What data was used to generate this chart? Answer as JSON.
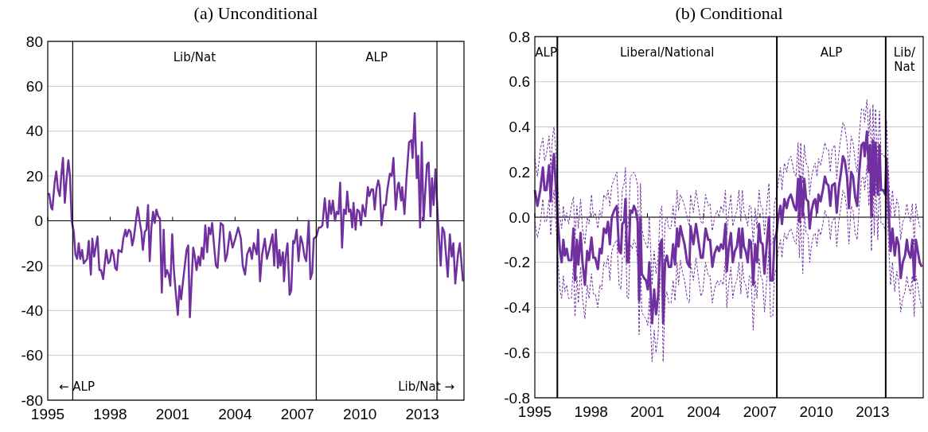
{
  "chart_data": [
    {
      "type": "line",
      "title": "(a) Unconditional",
      "xlim": [
        1995,
        2015
      ],
      "xticks": [
        1995,
        1998,
        2001,
        2004,
        2007,
        2010,
        2013
      ],
      "ylim": [
        -80,
        80
      ],
      "yticks": [
        -80,
        -60,
        -40,
        -20,
        0,
        20,
        40,
        60,
        80
      ],
      "grid": "y",
      "series": [
        {
          "color": "#7030a0",
          "x": [
            1995.0,
            1995.07,
            1995.16,
            1995.22,
            1995.33,
            1995.41,
            1995.49,
            1995.58,
            1995.65,
            1995.73,
            1995.82,
            1995.9,
            1995.99,
            1996.07,
            1996.15,
            1996.25,
            1996.33,
            1996.41,
            1996.49,
            1996.56,
            1996.65,
            1996.73,
            1996.89,
            1996.97,
            1997.07,
            1997.14,
            1997.23,
            1997.39,
            1997.48,
            1997.56,
            1997.66,
            1997.81,
            1997.91,
            1997.99,
            1998.08,
            1998.16,
            1998.24,
            1998.32,
            1998.4,
            1998.55,
            1998.63,
            1998.73,
            1998.79,
            1998.9,
            1998.98,
            1999.06,
            1999.13,
            1999.32,
            1999.43,
            1999.5,
            1999.57,
            1999.66,
            1999.74,
            1999.82,
            1999.9,
            1999.98,
            2000.06,
            2000.14,
            2000.22,
            2000.31,
            2000.39,
            2000.48,
            2000.57,
            2000.65,
            2000.73,
            2000.81,
            2000.89,
            2000.98,
            2001.06,
            2001.16,
            2001.25,
            2001.33,
            2001.41,
            2001.5,
            2001.67,
            2001.75,
            2001.83,
            2001.91,
            2001.99,
            2002.07,
            2002.15,
            2002.24,
            2002.32,
            2002.4,
            2002.48,
            2002.57,
            2002.66,
            2002.74,
            2002.82,
            2002.9,
            2002.98,
            2003.08,
            2003.16,
            2003.31,
            2003.42,
            2003.53,
            2003.62,
            2003.75,
            2003.88,
            2004.01,
            2004.15,
            2004.28,
            2004.37,
            2004.48,
            2004.58,
            2004.71,
            2004.81,
            2004.9,
            2005.04,
            2005.11,
            2005.2,
            2005.3,
            2005.43,
            2005.53,
            2005.64,
            2005.8,
            2005.88,
            2005.96,
            2006.06,
            2006.13,
            2006.19,
            2006.3,
            2006.35,
            2006.43,
            2006.52,
            2006.62,
            2006.7,
            2006.79,
            2006.85,
            2006.96,
            2007.05,
            2007.15,
            2007.24,
            2007.34,
            2007.42,
            2007.54,
            2007.62,
            2007.71,
            2007.78,
            2007.91,
            2008.02,
            2008.11,
            2008.2,
            2008.31,
            2008.44,
            2008.53,
            2008.61,
            2008.7,
            2008.8,
            2008.88,
            2008.97,
            2009.05,
            2009.14,
            2009.23,
            2009.32,
            2009.39,
            2009.47,
            2009.55,
            2009.63,
            2009.69,
            2009.79,
            2009.87,
            2009.97,
            2010.05,
            2010.13,
            2010.26,
            2010.38,
            2010.45,
            2010.55,
            2010.63,
            2010.71,
            2010.79,
            2010.88,
            2010.95,
            2011.04,
            2011.15,
            2011.24,
            2011.32,
            2011.44,
            2011.53,
            2011.61,
            2011.72,
            2011.82,
            2011.87,
            2011.98,
            2012.03,
            2012.14,
            2012.23,
            2012.36,
            2012.47,
            2012.53,
            2012.63,
            2012.73,
            2012.8,
            2012.89,
            2012.97,
            2013.06,
            2013.14,
            2013.22,
            2013.3,
            2013.39,
            2013.46,
            2013.54,
            2013.63,
            2013.75,
            2013.88,
            2013.96,
            2014.05,
            2014.22,
            2014.32,
            2014.41,
            2014.49,
            2014.58,
            2014.71,
            2014.8,
            2014.95
          ],
          "values": [
            12,
            12,
            6,
            5,
            17,
            22,
            14,
            11,
            20,
            28,
            8,
            18,
            27,
            20,
            0,
            -5,
            -15,
            -17,
            -10,
            -17,
            -13,
            -19,
            -17,
            -9,
            -24,
            -8,
            -16,
            -7,
            -22,
            -22,
            -26,
            -13,
            -19,
            -18,
            -13,
            -15,
            -21,
            -22,
            -13,
            -14,
            -8,
            -4,
            -7,
            -4,
            -5,
            -11,
            -8,
            6,
            -1,
            -5,
            -13,
            -5,
            -4,
            7,
            -18,
            -3,
            4,
            -1,
            5,
            2,
            1,
            -32,
            -4,
            -25,
            -22,
            -24,
            -29,
            -6,
            -22,
            -33,
            -42,
            -29,
            -35,
            -27,
            -13,
            -11,
            -43,
            -27,
            -12,
            -16,
            -22,
            -16,
            -20,
            -12,
            -17,
            -2,
            -14,
            -3,
            -6,
            -1,
            -10,
            -20,
            -21,
            -1,
            -2,
            -18,
            -15,
            -5,
            -12,
            -8,
            -3,
            -8,
            -20,
            -24,
            -15,
            -12,
            -17,
            -10,
            -15,
            -4,
            -27,
            -15,
            -8,
            -17,
            -13,
            -6,
            -20,
            -4,
            -21,
            -13,
            -20,
            -14,
            -27,
            -16,
            -10,
            -33,
            -31,
            -9,
            -10,
            -4,
            -18,
            -7,
            -10,
            -16,
            -18,
            0,
            -26,
            -23,
            -8,
            -7,
            -3,
            -3,
            -2,
            10,
            -3,
            9,
            3,
            9,
            0,
            4,
            3,
            17,
            -12,
            5,
            3,
            13,
            4,
            5,
            -3,
            8,
            -4,
            5,
            4,
            -2,
            7,
            2,
            15,
            11,
            14,
            14,
            5,
            14,
            18,
            15,
            -2,
            7,
            7,
            14,
            21,
            20,
            28,
            5,
            16,
            17,
            9,
            15,
            3,
            18,
            35,
            36,
            28,
            48,
            19,
            29,
            -3,
            35,
            0,
            13,
            25,
            26,
            2,
            19,
            7,
            23,
            0,
            -20,
            -3,
            -5,
            -25,
            -6,
            -16,
            -10,
            -28,
            -15,
            -10,
            -27
          ]
        }
      ],
      "ref_lines": [
        {
          "axis": "x",
          "value": 1996.2,
          "color": "#000000"
        },
        {
          "axis": "x",
          "value": 2007.9,
          "color": "#000000"
        },
        {
          "axis": "x",
          "value": 2013.7,
          "color": "#000000"
        }
      ],
      "annotations": [
        "Lib/Nat",
        "ALP",
        "← ALP",
        "Lib/Nat →"
      ]
    },
    {
      "type": "line",
      "title": "(b) Conditional",
      "xlim": [
        1995,
        2015.7
      ],
      "xticks": [
        1995,
        1998,
        2001,
        2004,
        2007,
        2010,
        2013
      ],
      "ylim": [
        -0.8,
        0.8
      ],
      "yticks": [
        -0.8,
        -0.6,
        -0.4,
        -0.2,
        {
          "value": 0,
          "label": "0.0"
        },
        0.2,
        0.4,
        0.6,
        0.8
      ],
      "grid": "y",
      "series": [
        {
          "color": "#7030a0",
          "x": [
            1995.0,
            1995.14,
            1995.29,
            1995.43,
            1995.52,
            1995.62,
            1995.76,
            1995.85,
            1995.94,
            1996.02,
            1996.13,
            1996.23,
            1996.34,
            1996.43,
            1996.52,
            1996.6,
            1996.7,
            1996.8,
            1996.95,
            1997.06,
            1997.14,
            1997.24,
            1997.32,
            1997.44,
            1997.54,
            1997.67,
            1997.79,
            1997.89,
            1998.02,
            1998.12,
            1998.22,
            1998.36,
            1998.46,
            1998.56,
            1998.68,
            1998.8,
            1998.9,
            1999.0,
            1999.1,
            1999.23,
            1999.37,
            1999.49,
            1999.59,
            1999.66,
            1999.76,
            1999.83,
            1999.92,
            1999.99,
            2000.09,
            2000.19,
            2000.28,
            2000.38,
            2000.48,
            2000.56,
            2000.63,
            2000.7,
            2000.82,
            2000.93,
            2001.02,
            2001.1,
            2001.25,
            2001.36,
            2001.46,
            2001.57,
            2001.68,
            2001.77,
            2001.84,
            2001.94,
            2002.04,
            2002.14,
            2002.26,
            2002.37,
            2002.47,
            2002.58,
            2002.66,
            2002.76,
            2002.86,
            2002.98,
            2003.12,
            2003.24,
            2003.3,
            2003.45,
            2003.59,
            2003.71,
            2003.85,
            2003.95,
            2004.1,
            2004.24,
            2004.34,
            2004.46,
            2004.58,
            2004.72,
            2004.82,
            2004.92,
            2005.04,
            2005.16,
            2005.23,
            2005.33,
            2005.45,
            2005.55,
            2005.66,
            2005.77,
            2005.88,
            2005.98,
            2006.06,
            2006.14,
            2006.24,
            2006.35,
            2006.43,
            2006.52,
            2006.64,
            2006.74,
            2006.84,
            2006.95,
            2007.04,
            2007.14,
            2007.24,
            2007.36,
            2007.48,
            2007.56,
            2007.68,
            2007.77,
            2007.88,
            2007.97,
            2008.09,
            2008.17,
            2008.3,
            2008.42,
            2008.52,
            2008.64,
            2008.72,
            2008.81,
            2008.93,
            2009.03,
            2009.1,
            2009.17,
            2009.28,
            2009.36,
            2009.46,
            2009.57,
            2009.65,
            2009.75,
            2009.86,
            2009.94,
            2010.04,
            2010.12,
            2010.23,
            2010.35,
            2010.46,
            2010.55,
            2010.65,
            2010.75,
            2010.84,
            2010.99,
            2011.09,
            2011.2,
            2011.32,
            2011.42,
            2011.52,
            2011.64,
            2011.74,
            2011.86,
            2011.96,
            2012.07,
            2012.18,
            2012.29,
            2012.41,
            2012.52,
            2012.58,
            2012.7,
            2012.8,
            2012.87,
            2012.94,
            2013.02,
            2013.09,
            2013.16,
            2013.28,
            2013.37,
            2013.45,
            2013.57,
            2013.68,
            2013.74,
            2013.83,
            2013.96,
            2014.06,
            2014.18,
            2014.29,
            2014.39,
            2014.5,
            2014.61,
            2014.73,
            2014.83,
            2014.9,
            2015.02,
            2015.12,
            2015.22,
            2015.31,
            2015.41,
            2015.51,
            2015.63
          ],
          "values": [
            0.12,
            0.05,
            0.12,
            0.22,
            0.12,
            0.12,
            0.23,
            0.07,
            0.22,
            0.28,
            0.12,
            -0.02,
            -0.15,
            -0.2,
            -0.1,
            -0.17,
            -0.14,
            -0.19,
            -0.19,
            -0.05,
            -0.28,
            -0.1,
            -0.21,
            -0.07,
            -0.2,
            -0.3,
            -0.15,
            -0.19,
            -0.09,
            -0.18,
            -0.18,
            -0.23,
            -0.14,
            -0.16,
            -0.05,
            -0.07,
            -0.02,
            -0.12,
            0,
            0.03,
            0.05,
            -0.15,
            -0.16,
            -0.03,
            -0.02,
            0.08,
            -0.2,
            -0.2,
            0.03,
            0.02,
            0.05,
            0.03,
            -0.02,
            -0.37,
            0,
            -0.25,
            -0.27,
            -0.28,
            -0.32,
            -0.2,
            -0.47,
            -0.32,
            -0.43,
            -0.35,
            -0.12,
            -0.1,
            -0.47,
            -0.2,
            -0.17,
            -0.22,
            -0.22,
            -0.12,
            -0.21,
            -0.05,
            -0.13,
            -0.04,
            -0.08,
            -0.12,
            -0.2,
            -0.22,
            -0.04,
            -0.12,
            -0.03,
            -0.1,
            -0.18,
            -0.18,
            -0.05,
            -0.1,
            -0.1,
            -0.22,
            -0.16,
            -0.13,
            -0.15,
            -0.12,
            -0.14,
            -0.03,
            -0.24,
            -0.14,
            -0.07,
            -0.2,
            -0.15,
            -0.13,
            -0.05,
            -0.18,
            -0.05,
            -0.13,
            -0.15,
            -0.2,
            -0.1,
            -0.11,
            -0.3,
            -0.12,
            -0.2,
            -0.03,
            -0.11,
            -0.12,
            -0.25,
            -0.12,
            0,
            -0.28,
            -0.28,
            -0.1,
            -0.07,
            0,
            0.05,
            -0.03,
            0.08,
            0.04,
            0.08,
            0.1,
            0.08,
            0.05,
            0.03,
            0.17,
            -0.02,
            0.18,
            0,
            0.17,
            0.08,
            0.07,
            -0.05,
            0.03,
            0.07,
            0.08,
            0.02,
            0.1,
            0.07,
            0.12,
            0.18,
            0.15,
            0.14,
            0.05,
            0.14,
            0.15,
            0.02,
            0.13,
            0.2,
            0.27,
            0.25,
            0.18,
            0.04,
            0.2,
            0.18,
            0.09,
            0.05,
            0.2,
            0.32,
            0.33,
            0.27,
            0.38,
            0.2,
            0.32,
            0,
            0.34,
            0.1,
            0.33,
            0.1,
            0.32,
            0.12,
            0.12,
            0.1,
            0.26,
            0.08,
            -0.15,
            -0.05,
            -0.17,
            -0.09,
            -0.12,
            -0.27,
            -0.2,
            -0.17,
            -0.1,
            -0.15,
            -0.18,
            -0.1,
            -0.28,
            -0.1,
            -0.15,
            -0.2,
            -0.22
          ]
        },
        {
          "color": "#7030a0",
          "line_style": "dashed",
          "x": [
            1995.0,
            1995.14,
            1995.29,
            1995.43,
            1995.52,
            1995.62,
            1995.76,
            1995.85,
            1995.94,
            1996.02,
            1996.13,
            1996.23,
            1996.34,
            1996.43,
            1996.52,
            1996.6,
            1996.7,
            1996.8,
            1996.95,
            1997.06,
            1997.14,
            1997.24,
            1997.32,
            1997.44,
            1997.54,
            1997.67,
            1997.79,
            1997.89,
            1998.02,
            1998.12,
            1998.22,
            1998.36,
            1998.46,
            1998.56,
            1998.68,
            1998.8,
            1998.9,
            1999.0,
            1999.1,
            1999.23,
            1999.37,
            1999.49,
            1999.59,
            1999.66,
            1999.76,
            1999.83,
            1999.92,
            1999.99,
            2000.09,
            2000.19,
            2000.28,
            2000.38,
            2000.48,
            2000.56,
            2000.63,
            2000.7,
            2000.82,
            2000.93,
            2001.02,
            2001.1,
            2001.25,
            2001.36,
            2001.46,
            2001.57,
            2001.68,
            2001.77,
            2001.84,
            2001.94,
            2002.04,
            2002.14,
            2002.26,
            2002.37,
            2002.47,
            2002.58,
            2002.66,
            2002.76,
            2002.86,
            2002.98,
            2003.12,
            2003.24,
            2003.3,
            2003.45,
            2003.59,
            2003.71,
            2003.85,
            2003.95,
            2004.1,
            2004.24,
            2004.34,
            2004.46,
            2004.58,
            2004.72,
            2004.82,
            2004.92,
            2005.04,
            2005.16,
            2005.23,
            2005.33,
            2005.45,
            2005.55,
            2005.66,
            2005.77,
            2005.88,
            2005.98,
            2006.06,
            2006.14,
            2006.24,
            2006.35,
            2006.43,
            2006.52,
            2006.64,
            2006.74,
            2006.84,
            2006.95,
            2007.04,
            2007.14,
            2007.24,
            2007.36,
            2007.48,
            2007.56,
            2007.68,
            2007.77,
            2007.88,
            2007.97,
            2008.09,
            2008.17,
            2008.3,
            2008.42,
            2008.52,
            2008.64,
            2008.72,
            2008.81,
            2008.93,
            2009.03,
            2009.1,
            2009.17,
            2009.28,
            2009.36,
            2009.46,
            2009.57,
            2009.65,
            2009.75,
            2009.86,
            2009.94,
            2010.04,
            2010.12,
            2010.23,
            2010.35,
            2010.46,
            2010.55,
            2010.65,
            2010.75,
            2010.84,
            2010.99,
            2011.09,
            2011.2,
            2011.32,
            2011.42,
            2011.52,
            2011.64,
            2011.74,
            2011.86,
            2011.96,
            2012.07,
            2012.18,
            2012.29,
            2012.41,
            2012.52,
            2012.58,
            2012.7,
            2012.8,
            2012.87,
            2012.94,
            2013.02,
            2013.09,
            2013.16,
            2013.28,
            2013.37,
            2013.45,
            2013.57,
            2013.68,
            2013.74,
            2013.83,
            2013.96,
            2014.06,
            2014.18,
            2014.29,
            2014.39,
            2014.5,
            2014.61,
            2014.73,
            2014.83,
            2014.9,
            2015.02,
            2015.12,
            2015.22,
            2015.31,
            2015.41,
            2015.51,
            2015.63
          ],
          "values": [
            0.26,
            0.18,
            0.3,
            0.35,
            0.25,
            0.28,
            0.36,
            0.22,
            0.35,
            0.4,
            0.28,
            0.12,
            0,
            -0.05,
            0.05,
            -0.02,
            0.02,
            -0.03,
            0.05,
            0.09,
            -0.1,
            0.05,
            -0.05,
            0.08,
            -0.05,
            -0.12,
            0,
            -0.03,
            0.1,
            0,
            0.02,
            -0.05,
            0.03,
            0,
            0.1,
            0.08,
            0.12,
            0.05,
            0.14,
            0.17,
            0.2,
            0,
            -0.02,
            0.12,
            0.15,
            0.22,
            -0.05,
            -0.03,
            0.18,
            0.19,
            0.2,
            0.18,
            0.14,
            -0.2,
            0.15,
            -0.05,
            -0.1,
            -0.12,
            -0.14,
            0,
            -0.3,
            -0.15,
            -0.25,
            -0.18,
            0.02,
            0.05,
            -0.3,
            -0.02,
            0,
            -0.05,
            -0.05,
            0.05,
            -0.04,
            0.12,
            0.03,
            0.1,
            0.08,
            0.05,
            0,
            -0.04,
            0.1,
            0.02,
            0.12,
            0.05,
            -0.02,
            -0.03,
            0.1,
            0.05,
            0.06,
            -0.06,
            0,
            0.03,
            0,
            0.05,
            0.02,
            0.12,
            -0.08,
            0.02,
            0.1,
            -0.04,
            0,
            0.03,
            0.12,
            -0.02,
            0.12,
            0.03,
            0,
            -0.04,
            0.05,
            0.05,
            -0.12,
            0.04,
            -0.05,
            0.12,
            0.05,
            0.04,
            -0.08,
            0.05,
            0.15,
            -0.12,
            -0.12,
            0.06,
            0.1,
            0.15,
            0.22,
            0.12,
            0.24,
            0.2,
            0.25,
            0.27,
            0.24,
            0.2,
            0.18,
            0.33,
            0.14,
            0.33,
            0.15,
            0.32,
            0.24,
            0.22,
            0.1,
            0.18,
            0.22,
            0.24,
            0.18,
            0.26,
            0.23,
            0.28,
            0.33,
            0.3,
            0.3,
            0.2,
            0.3,
            0.32,
            0.17,
            0.28,
            0.36,
            0.42,
            0.4,
            0.33,
            0.2,
            0.36,
            0.33,
            0.25,
            0.2,
            0.36,
            0.48,
            0.48,
            0.42,
            0.52,
            0.36,
            0.48,
            0.2,
            0.5,
            0.28,
            0.48,
            0.25,
            0.47,
            0.28,
            0.28,
            0.26,
            0.43,
            0.24,
            0,
            0.12,
            0,
            0.08,
            0.05,
            -0.1,
            -0.02,
            0,
            0.06,
            0.02,
            -0.02,
            0.06,
            -0.12,
            0.06,
            0,
            -0.04,
            -0.05
          ]
        },
        {
          "color": "#7030a0",
          "line_style": "dashed",
          "x": [
            1995.0,
            1995.14,
            1995.29,
            1995.43,
            1995.52,
            1995.62,
            1995.76,
            1995.85,
            1995.94,
            1996.02,
            1996.13,
            1996.23,
            1996.34,
            1996.43,
            1996.52,
            1996.6,
            1996.7,
            1996.8,
            1996.95,
            1997.06,
            1997.14,
            1997.24,
            1997.32,
            1997.44,
            1997.54,
            1997.67,
            1997.79,
            1997.89,
            1998.02,
            1998.12,
            1998.22,
            1998.36,
            1998.46,
            1998.56,
            1998.68,
            1998.8,
            1998.9,
            1999.0,
            1999.1,
            1999.23,
            1999.37,
            1999.49,
            1999.59,
            1999.66,
            1999.76,
            1999.83,
            1999.92,
            1999.99,
            2000.09,
            2000.19,
            2000.28,
            2000.38,
            2000.48,
            2000.56,
            2000.63,
            2000.7,
            2000.82,
            2000.93,
            2001.02,
            2001.1,
            2001.25,
            2001.36,
            2001.46,
            2001.57,
            2001.68,
            2001.77,
            2001.84,
            2001.94,
            2002.04,
            2002.14,
            2002.26,
            2002.37,
            2002.47,
            2002.58,
            2002.66,
            2002.76,
            2002.86,
            2002.98,
            2003.12,
            2003.24,
            2003.3,
            2003.45,
            2003.59,
            2003.71,
            2003.85,
            2003.95,
            2004.1,
            2004.24,
            2004.34,
            2004.46,
            2004.58,
            2004.72,
            2004.82,
            2004.92,
            2005.04,
            2005.16,
            2005.23,
            2005.33,
            2005.45,
            2005.55,
            2005.66,
            2005.77,
            2005.88,
            2005.98,
            2006.06,
            2006.14,
            2006.24,
            2006.35,
            2006.43,
            2006.52,
            2006.64,
            2006.74,
            2006.84,
            2006.95,
            2007.04,
            2007.14,
            2007.24,
            2007.36,
            2007.48,
            2007.56,
            2007.68,
            2007.77,
            2007.88,
            2007.97,
            2008.09,
            2008.17,
            2008.3,
            2008.42,
            2008.52,
            2008.64,
            2008.72,
            2008.81,
            2008.93,
            2009.03,
            2009.1,
            2009.17,
            2009.28,
            2009.36,
            2009.46,
            2009.57,
            2009.65,
            2009.75,
            2009.86,
            2009.94,
            2010.04,
            2010.12,
            2010.23,
            2010.35,
            2010.46,
            2010.55,
            2010.65,
            2010.75,
            2010.84,
            2010.99,
            2011.09,
            2011.2,
            2011.32,
            2011.42,
            2011.52,
            2011.64,
            2011.74,
            2011.86,
            2011.96,
            2012.07,
            2012.18,
            2012.29,
            2012.41,
            2012.52,
            2012.58,
            2012.7,
            2012.8,
            2012.87,
            2012.94,
            2013.02,
            2013.09,
            2013.16,
            2013.28,
            2013.37,
            2013.45,
            2013.57,
            2013.68,
            2013.74,
            2013.83,
            2013.96,
            2014.06,
            2014.18,
            2014.29,
            2014.39,
            2014.5,
            2014.61,
            2014.73,
            2014.83,
            2014.9,
            2015.02,
            2015.12,
            2015.22,
            2015.31,
            2015.41,
            2015.51,
            2015.63
          ],
          "values": [
            -0.02,
            -0.09,
            -0.03,
            0.08,
            -0.02,
            -0.02,
            0.08,
            -0.08,
            0.06,
            0.12,
            -0.04,
            -0.18,
            -0.32,
            -0.36,
            -0.26,
            -0.33,
            -0.3,
            -0.36,
            -0.36,
            -0.2,
            -0.44,
            -0.26,
            -0.38,
            -0.22,
            -0.36,
            -0.45,
            -0.3,
            -0.36,
            -0.25,
            -0.34,
            -0.34,
            -0.4,
            -0.3,
            -0.32,
            -0.2,
            -0.22,
            -0.17,
            -0.28,
            -0.15,
            -0.12,
            -0.1,
            -0.3,
            -0.32,
            -0.18,
            -0.18,
            -0.06,
            -0.36,
            -0.36,
            -0.12,
            -0.14,
            -0.1,
            -0.12,
            -0.18,
            -0.52,
            -0.15,
            -0.42,
            -0.44,
            -0.45,
            -0.48,
            -0.36,
            -0.64,
            -0.5,
            -0.6,
            -0.52,
            -0.28,
            -0.25,
            -0.64,
            -0.36,
            -0.33,
            -0.38,
            -0.38,
            -0.28,
            -0.37,
            -0.2,
            -0.3,
            -0.19,
            -0.24,
            -0.28,
            -0.36,
            -0.38,
            -0.2,
            -0.28,
            -0.18,
            -0.26,
            -0.35,
            -0.33,
            -0.2,
            -0.26,
            -0.26,
            -0.38,
            -0.32,
            -0.28,
            -0.3,
            -0.28,
            -0.3,
            -0.18,
            -0.4,
            -0.3,
            -0.22,
            -0.36,
            -0.3,
            -0.28,
            -0.2,
            -0.34,
            -0.2,
            -0.28,
            -0.3,
            -0.36,
            -0.26,
            -0.26,
            -0.5,
            -0.28,
            -0.36,
            -0.18,
            -0.26,
            -0.28,
            -0.42,
            -0.28,
            -0.15,
            -0.44,
            -0.44,
            -0.26,
            -0.22,
            -0.15,
            -0.1,
            -0.18,
            -0.07,
            -0.1,
            -0.07,
            -0.05,
            -0.07,
            -0.1,
            -0.12,
            0.02,
            -0.18,
            0.03,
            -0.25,
            0.02,
            -0.07,
            -0.08,
            -0.2,
            -0.12,
            -0.08,
            -0.07,
            -0.13,
            -0.05,
            -0.08,
            -0.03,
            0.03,
            0,
            0,
            -0.1,
            -0.02,
            0,
            -0.13,
            -0.02,
            0.05,
            0.12,
            0.1,
            0.03,
            -0.12,
            0.05,
            0.03,
            -0.07,
            -0.1,
            0.05,
            0.17,
            0.18,
            0.12,
            0.23,
            0.05,
            0.17,
            -0.15,
            0.2,
            -0.08,
            0.18,
            -0.1,
            0.17,
            -0.03,
            -0.03,
            -0.06,
            0.1,
            -0.08,
            -0.3,
            -0.2,
            -0.33,
            -0.24,
            -0.28,
            -0.42,
            -0.36,
            -0.33,
            -0.26,
            -0.3,
            -0.34,
            -0.26,
            -0.44,
            -0.26,
            -0.3,
            -0.36,
            -0.4
          ]
        }
      ],
      "ref_lines": [
        {
          "axis": "x",
          "value": 1996.2,
          "color": "#000000"
        },
        {
          "axis": "x",
          "value": 2007.9,
          "color": "#000000"
        },
        {
          "axis": "x",
          "value": 2013.7,
          "color": "#000000"
        }
      ],
      "annotations": [
        "ALP",
        "Liberal/National",
        "ALP",
        "Lib/\nNat"
      ]
    }
  ]
}
